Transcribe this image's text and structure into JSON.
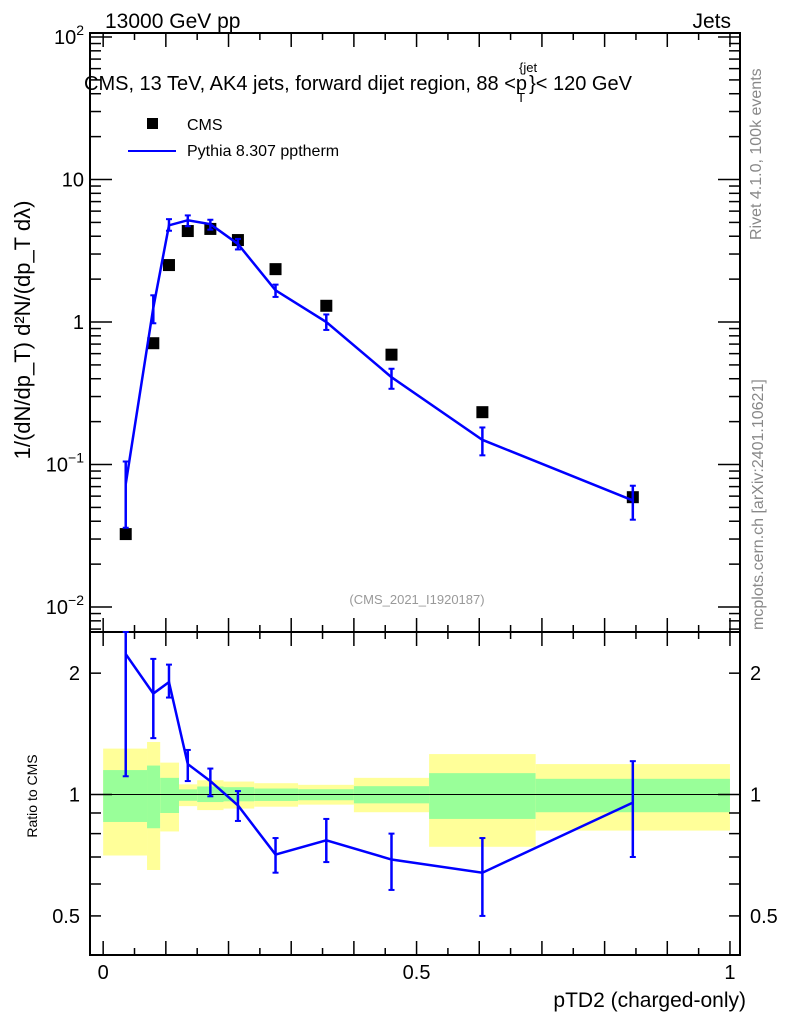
{
  "header": {
    "left": "13000 GeV pp",
    "right": "Jets"
  },
  "side_labels": {
    "top": "Rivet 4.1.0,  100k events",
    "bottom": "mcplots.cern.ch [arXiv:2401.10621]"
  },
  "analysis_tag": "(CMS_2021_I1920187)",
  "colors": {
    "data": "#000000",
    "mc": "#0000ff",
    "band_inner": "#99ff99",
    "band_outer": "#ffff99"
  },
  "chart_data": [
    {
      "type": "line",
      "title": "CMS, 13 TeV, AK4 jets, forward dijet region, 88 < p_T^{jet} < 120 GeV",
      "title_parts": {
        "main": "CMS, 13 TeV, AK4 jets, forward dijet region, 88 <p",
        "sup": "{jet",
        "sub": "T",
        "end": "}< 120 GeV"
      },
      "ylabel": "1/(dN/dp_T) d²N/(dp_T dλ)",
      "yscale": "log",
      "xlim": [
        -0.021,
        1.016
      ],
      "ylim": [
        0.00668,
        106.7
      ],
      "ytick_labels": [
        {
          "v": 100,
          "base": "10",
          "exp": "2"
        },
        {
          "v": 10,
          "base": "10",
          "exp": ""
        },
        {
          "v": 1,
          "base": "1",
          "exp": ""
        },
        {
          "v": 0.1,
          "base": "10",
          "exp": "−1"
        },
        {
          "v": 0.01,
          "base": "10",
          "exp": "−2"
        }
      ],
      "legend": {
        "placement": "top-left",
        "entries": [
          "CMS",
          "Pythia 8.307 pptherm"
        ]
      },
      "series": [
        {
          "name": "CMS",
          "marker": "square",
          "x": [
            0.036,
            0.08,
            0.105,
            0.135,
            0.171,
            0.215,
            0.275,
            0.356,
            0.46,
            0.605,
            0.845
          ],
          "y": [
            0.0325,
            0.71,
            2.51,
            4.35,
            4.5,
            3.76,
            2.35,
            1.3,
            0.59,
            0.233,
            0.059
          ]
        },
        {
          "name": "Pythia 8.307 pptherm",
          "marker": "line",
          "x": [
            0.036,
            0.08,
            0.105,
            0.135,
            0.171,
            0.215,
            0.275,
            0.356,
            0.46,
            0.605,
            0.845
          ],
          "y": [
            0.073,
            1.26,
            4.77,
            5.18,
            4.86,
            3.53,
            1.67,
            1.0,
            0.41,
            0.149,
            0.056
          ],
          "y_err_low": [
            0.036,
            0.98,
            4.37,
            4.7,
            4.45,
            3.23,
            1.5,
            0.88,
            0.34,
            0.116,
            0.041
          ],
          "y_err_high": [
            0.105,
            1.54,
            5.27,
            5.6,
            5.22,
            3.83,
            1.83,
            1.13,
            0.47,
            0.182,
            0.071
          ]
        }
      ]
    },
    {
      "type": "line",
      "ylabel": "Ratio to CMS",
      "xlabel": "pTD2 (charged-only)",
      "yscale": "log",
      "xlim": [
        -0.021,
        1.016
      ],
      "ylim": [
        0.4,
        2.53
      ],
      "xtick_labels": [
        {
          "v": 0,
          "label": "0"
        },
        {
          "v": 0.5,
          "label": "0.5"
        },
        {
          "v": 1,
          "label": "1"
        }
      ],
      "ytick_labels": [
        {
          "v": 2,
          "label": "2"
        },
        {
          "v": 1,
          "label": "1"
        },
        {
          "v": 0.5,
          "label": "0.5"
        }
      ],
      "bands": {
        "edges": [
          0.0,
          0.07,
          0.091,
          0.121,
          0.15,
          0.192,
          0.241,
          0.311,
          0.4,
          0.52,
          0.69,
          1.0
        ],
        "outer_high": [
          1.3,
          1.35,
          1.2,
          1.06,
          1.085,
          1.077,
          1.067,
          1.057,
          1.1,
          1.26,
          1.19
        ],
        "inner_high": [
          1.15,
          1.18,
          1.1,
          1.03,
          1.047,
          1.043,
          1.035,
          1.031,
          1.049,
          1.13,
          1.094
        ],
        "inner_low": [
          0.855,
          0.825,
          0.9,
          0.965,
          0.958,
          0.962,
          0.964,
          0.968,
          0.951,
          0.87,
          0.904
        ],
        "outer_low": [
          0.706,
          0.65,
          0.81,
          0.936,
          0.915,
          0.923,
          0.933,
          0.944,
          0.904,
          0.742,
          0.814
        ]
      },
      "series": [
        {
          "name": "Pythia 8.307 pptherm / CMS",
          "x": [
            0.036,
            0.08,
            0.105,
            0.135,
            0.171,
            0.215,
            0.275,
            0.356,
            0.46,
            0.605,
            0.845
          ],
          "y": [
            2.23,
            1.78,
            1.9,
            1.19,
            1.08,
            0.94,
            0.71,
            0.77,
            0.69,
            0.64,
            0.955
          ],
          "y_err_low": [
            1.11,
            1.38,
            1.74,
            1.08,
            0.99,
            0.86,
            0.64,
            0.68,
            0.58,
            0.5,
            0.7
          ],
          "y_err_high": [
            3.0,
            2.17,
            2.1,
            1.29,
            1.16,
            1.02,
            0.78,
            0.87,
            0.8,
            0.78,
            1.21
          ]
        }
      ]
    }
  ]
}
